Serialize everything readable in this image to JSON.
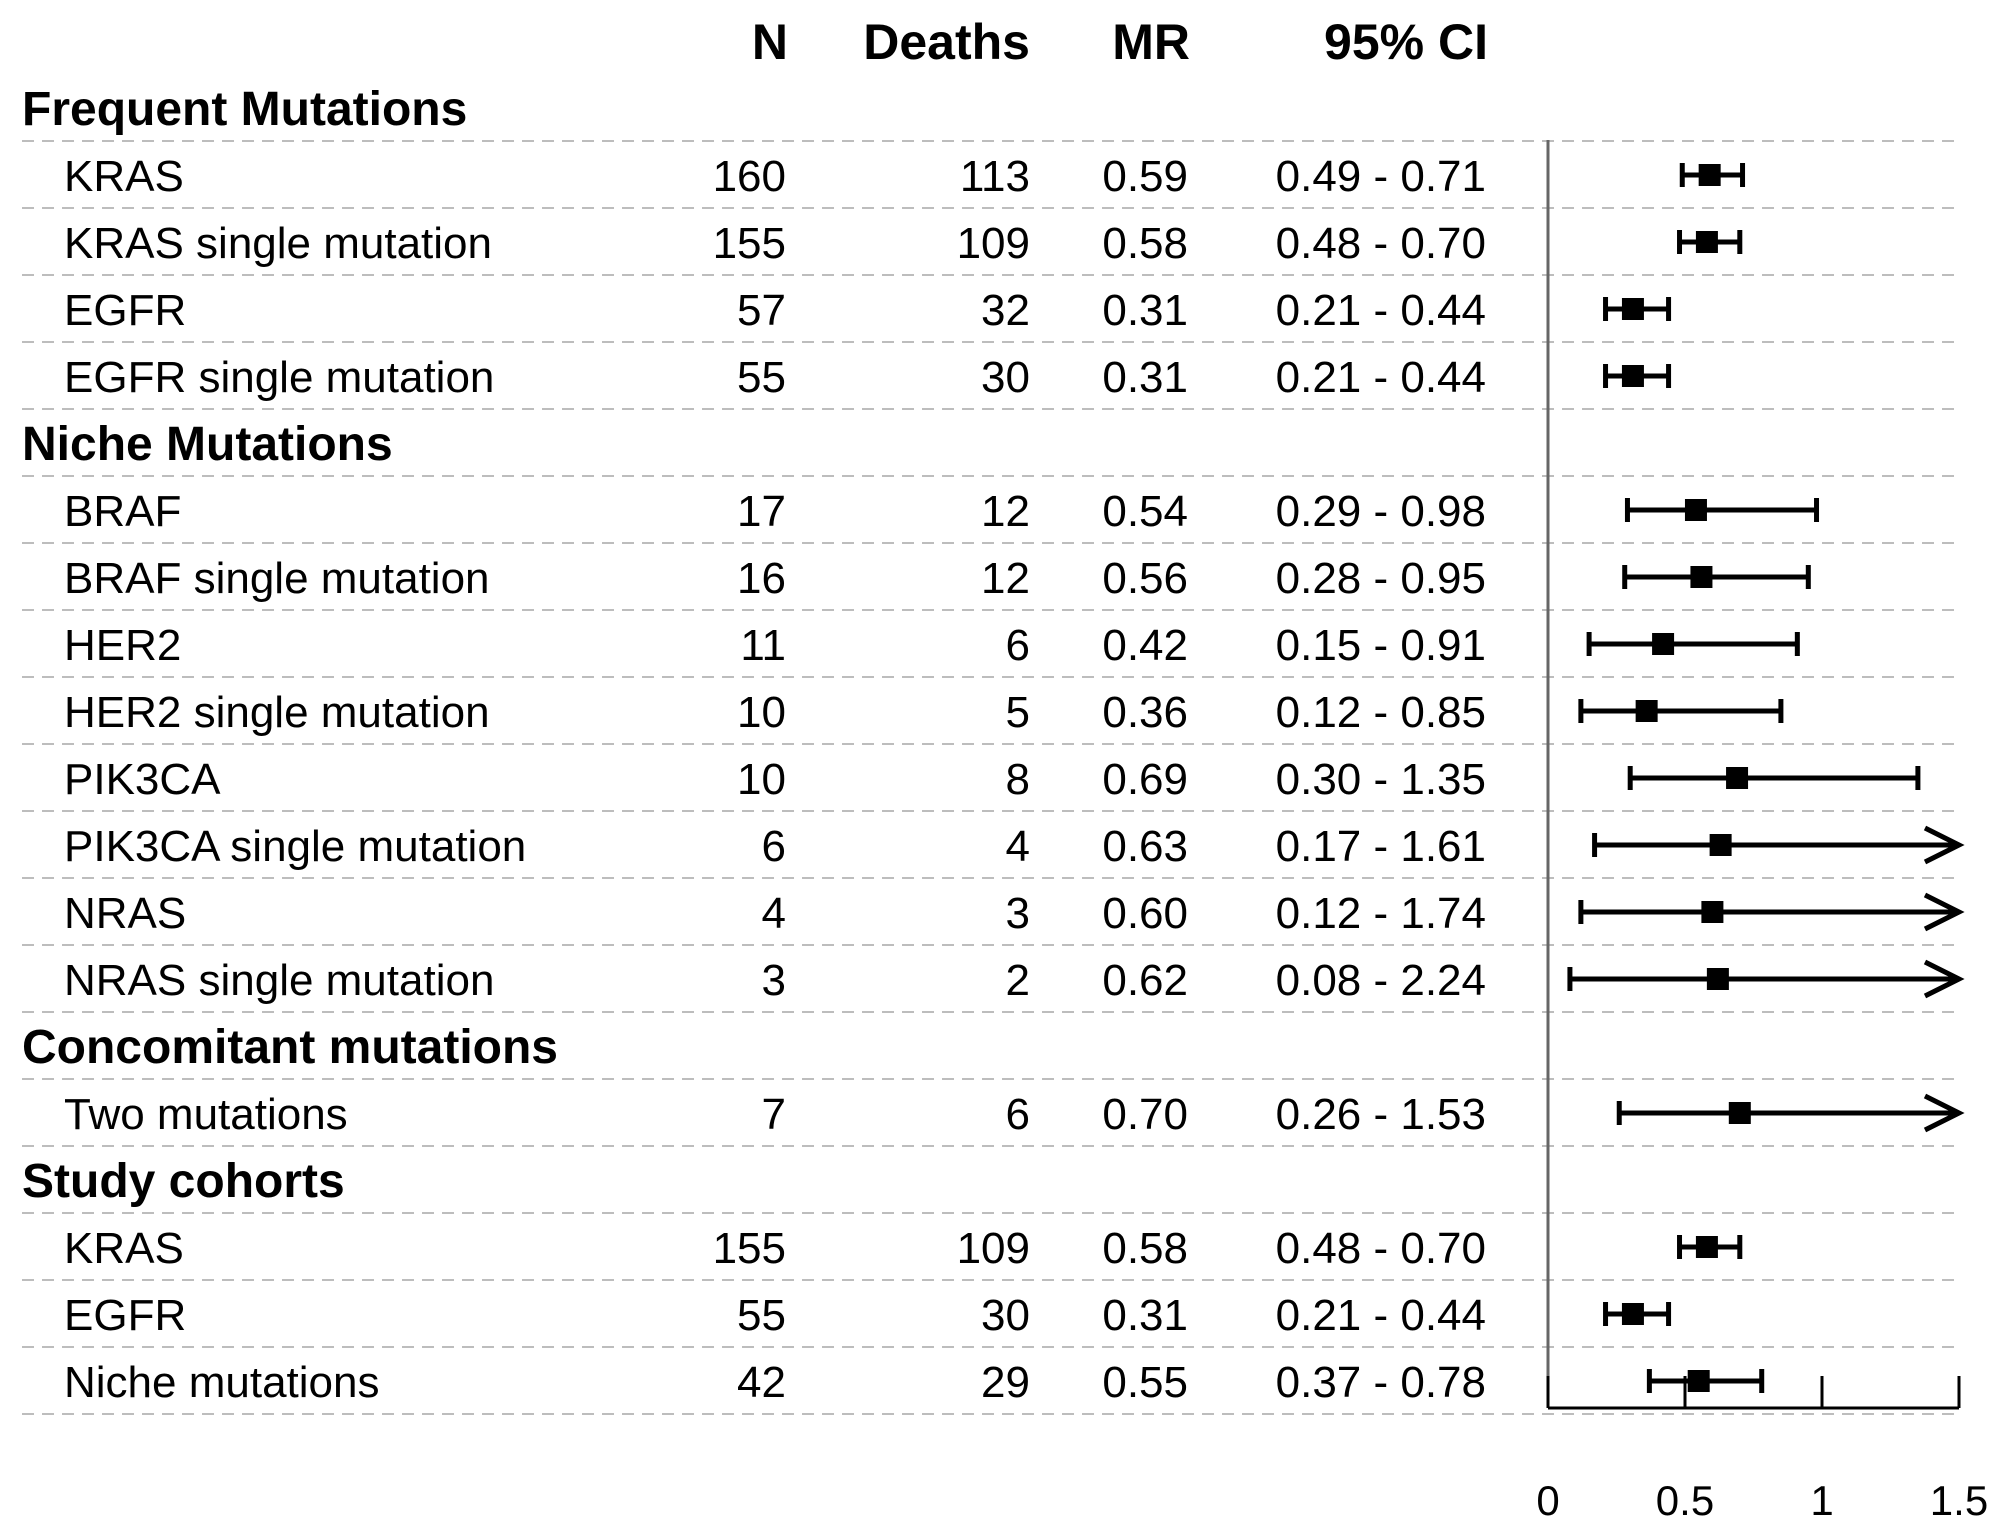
{
  "columns": {
    "n": "N",
    "deaths": "Deaths",
    "mr": "MR",
    "ci": "95% CI"
  },
  "groups": [
    {
      "title": "Frequent Mutations",
      "rows": [
        {
          "label": "KRAS",
          "n": "160",
          "deaths": "113",
          "mr": "0.59",
          "ci": "0.49 - 0.71"
        },
        {
          "label": "KRAS single mutation",
          "n": "155",
          "deaths": "109",
          "mr": "0.58",
          "ci": "0.48 - 0.70"
        },
        {
          "label": "EGFR",
          "n": "57",
          "deaths": "32",
          "mr": "0.31",
          "ci": "0.21 - 0.44"
        },
        {
          "label": "EGFR single mutation",
          "n": "55",
          "deaths": "30",
          "mr": "0.31",
          "ci": "0.21 - 0.44"
        }
      ]
    },
    {
      "title": "Niche Mutations",
      "rows": [
        {
          "label": "BRAF",
          "n": "17",
          "deaths": "12",
          "mr": "0.54",
          "ci": "0.29 - 0.98"
        },
        {
          "label": "BRAF single mutation",
          "n": "16",
          "deaths": "12",
          "mr": "0.56",
          "ci": "0.28 - 0.95"
        },
        {
          "label": "HER2",
          "n": "11",
          "deaths": "6",
          "mr": "0.42",
          "ci": "0.15 - 0.91"
        },
        {
          "label": "HER2 single mutation",
          "n": "10",
          "deaths": "5",
          "mr": "0.36",
          "ci": "0.12 - 0.85"
        },
        {
          "label": "PIK3CA",
          "n": "10",
          "deaths": "8",
          "mr": "0.69",
          "ci": "0.30 - 1.35"
        },
        {
          "label": "PIK3CA single mutation",
          "n": "6",
          "deaths": "4",
          "mr": "0.63",
          "ci": "0.17 - 1.61"
        },
        {
          "label": "NRAS",
          "n": "4",
          "deaths": "3",
          "mr": "0.60",
          "ci": "0.12 - 1.74"
        },
        {
          "label": "NRAS single mutation",
          "n": "3",
          "deaths": "2",
          "mr": "0.62",
          "ci": "0.08 - 2.24"
        }
      ]
    },
    {
      "title": "Concomitant mutations",
      "rows": [
        {
          "label": "Two mutations",
          "n": "7",
          "deaths": "6",
          "mr": "0.70",
          "ci": "0.26 - 1.53"
        }
      ]
    },
    {
      "title": "Study cohorts",
      "rows": [
        {
          "label": "KRAS",
          "n": "155",
          "deaths": "109",
          "mr": "0.58",
          "ci": "0.48 - 0.70"
        },
        {
          "label": "EGFR",
          "n": "55",
          "deaths": "30",
          "mr": "0.31",
          "ci": "0.21 - 0.44"
        },
        {
          "label": "Niche mutations",
          "n": "42",
          "deaths": "29",
          "mr": "0.55",
          "ci": "0.37 - 0.78"
        }
      ]
    }
  ],
  "chart_data": {
    "type": "forest",
    "x": {
      "min": 0,
      "max": 1.5,
      "ticks": [
        "0",
        "0.5",
        "1",
        "1.5"
      ]
    },
    "reference_line": 0,
    "points": [
      {
        "label": "KRAS",
        "est": 0.59,
        "lo": 0.49,
        "hi": 0.71
      },
      {
        "label": "KRAS single mutation",
        "est": 0.58,
        "lo": 0.48,
        "hi": 0.7
      },
      {
        "label": "EGFR",
        "est": 0.31,
        "lo": 0.21,
        "hi": 0.44
      },
      {
        "label": "EGFR single mutation",
        "est": 0.31,
        "lo": 0.21,
        "hi": 0.44
      },
      {
        "label": "BRAF",
        "est": 0.54,
        "lo": 0.29,
        "hi": 0.98
      },
      {
        "label": "BRAF single mutation",
        "est": 0.56,
        "lo": 0.28,
        "hi": 0.95
      },
      {
        "label": "HER2",
        "est": 0.42,
        "lo": 0.15,
        "hi": 0.91
      },
      {
        "label": "HER2 single mutation",
        "est": 0.36,
        "lo": 0.12,
        "hi": 0.85
      },
      {
        "label": "PIK3CA",
        "est": 0.69,
        "lo": 0.3,
        "hi": 1.35
      },
      {
        "label": "PIK3CA single mutation",
        "est": 0.63,
        "lo": 0.17,
        "hi": 1.61
      },
      {
        "label": "NRAS",
        "est": 0.6,
        "lo": 0.12,
        "hi": 1.74
      },
      {
        "label": "NRAS single mutation",
        "est": 0.62,
        "lo": 0.08,
        "hi": 2.24
      },
      {
        "label": "Two mutations",
        "est": 0.7,
        "lo": 0.26,
        "hi": 1.53
      },
      {
        "label": "KRAS",
        "est": 0.58,
        "lo": 0.48,
        "hi": 0.7
      },
      {
        "label": "EGFR",
        "est": 0.31,
        "lo": 0.21,
        "hi": 0.44
      },
      {
        "label": "Niche mutations",
        "est": 0.55,
        "lo": 0.37,
        "hi": 0.78
      }
    ]
  }
}
